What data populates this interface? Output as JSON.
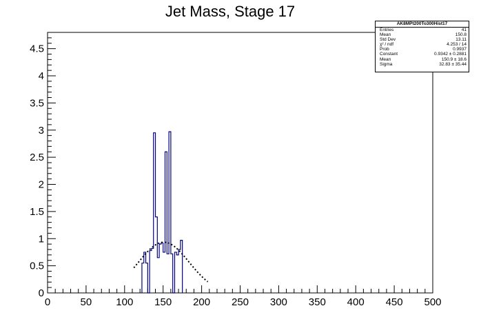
{
  "chart_data": {
    "type": "histogram",
    "title": "Jet Mass, Stage 17",
    "xlim": [
      0,
      500
    ],
    "ylim": [
      0,
      4.8
    ],
    "x_ticks": [
      "0",
      "50",
      "100",
      "150",
      "200",
      "250",
      "300",
      "350",
      "400",
      "450",
      "500"
    ],
    "y_ticks": [
      "0",
      "0.5",
      "1",
      "1.5",
      "2",
      "2.5",
      "3",
      "3.5",
      "4",
      "4.5"
    ],
    "x_tick_values": [
      0,
      50,
      100,
      150,
      200,
      250,
      300,
      350,
      400,
      450,
      500
    ],
    "y_tick_values": [
      0,
      0.5,
      1,
      1.5,
      2,
      2.5,
      3,
      3.5,
      4,
      4.5
    ],
    "bin_width": 2.5,
    "bins": [
      {
        "x": 122.5,
        "y": 0.55
      },
      {
        "x": 125.0,
        "y": 0.75
      },
      {
        "x": 127.5,
        "y": 0.55
      },
      {
        "x": 130.0,
        "y": 0.0
      },
      {
        "x": 132.5,
        "y": 0.78
      },
      {
        "x": 135.0,
        "y": 0.82
      },
      {
        "x": 137.5,
        "y": 2.95
      },
      {
        "x": 140.0,
        "y": 1.4
      },
      {
        "x": 142.5,
        "y": 0.65
      },
      {
        "x": 145.0,
        "y": 0.9
      },
      {
        "x": 147.5,
        "y": 0.92
      },
      {
        "x": 150.0,
        "y": 0.75
      },
      {
        "x": 152.5,
        "y": 2.6
      },
      {
        "x": 155.0,
        "y": 0.72
      },
      {
        "x": 157.5,
        "y": 2.97
      },
      {
        "x": 160.0,
        "y": 0.72
      },
      {
        "x": 162.5,
        "y": 0.0
      },
      {
        "x": 165.0,
        "y": 0.75
      },
      {
        "x": 167.5,
        "y": 0.7
      },
      {
        "x": 170.0,
        "y": 0.8
      },
      {
        "x": 172.5,
        "y": 0.97
      }
    ],
    "fit": {
      "type": "gaus",
      "constant": 0.9342,
      "mean": 150.9,
      "sigma": 32.83,
      "x_range": [
        112,
        208
      ]
    },
    "grid": false,
    "legend": "top-right",
    "colors": {
      "histogram": "#000080",
      "fit": "#000000",
      "axis": "#000000"
    }
  },
  "stats": {
    "title": "AK8MPt200To300Hist17",
    "rows": [
      {
        "label": "Entries",
        "value": "41"
      },
      {
        "label": "Mean",
        "value": "150.8"
      },
      {
        "label": "Std Dev",
        "value": "13.11"
      },
      {
        "label": "χ² / ndf",
        "value": "4.253 / 14"
      },
      {
        "label": "Prob",
        "value": "0.9937"
      },
      {
        "label": "Constant",
        "value": "0.9342 ± 0.2881"
      },
      {
        "label": "Mean",
        "value": "150.9 ± 18.6"
      },
      {
        "label": "Sigma",
        "value": "32.83 ± 35.44"
      }
    ]
  }
}
